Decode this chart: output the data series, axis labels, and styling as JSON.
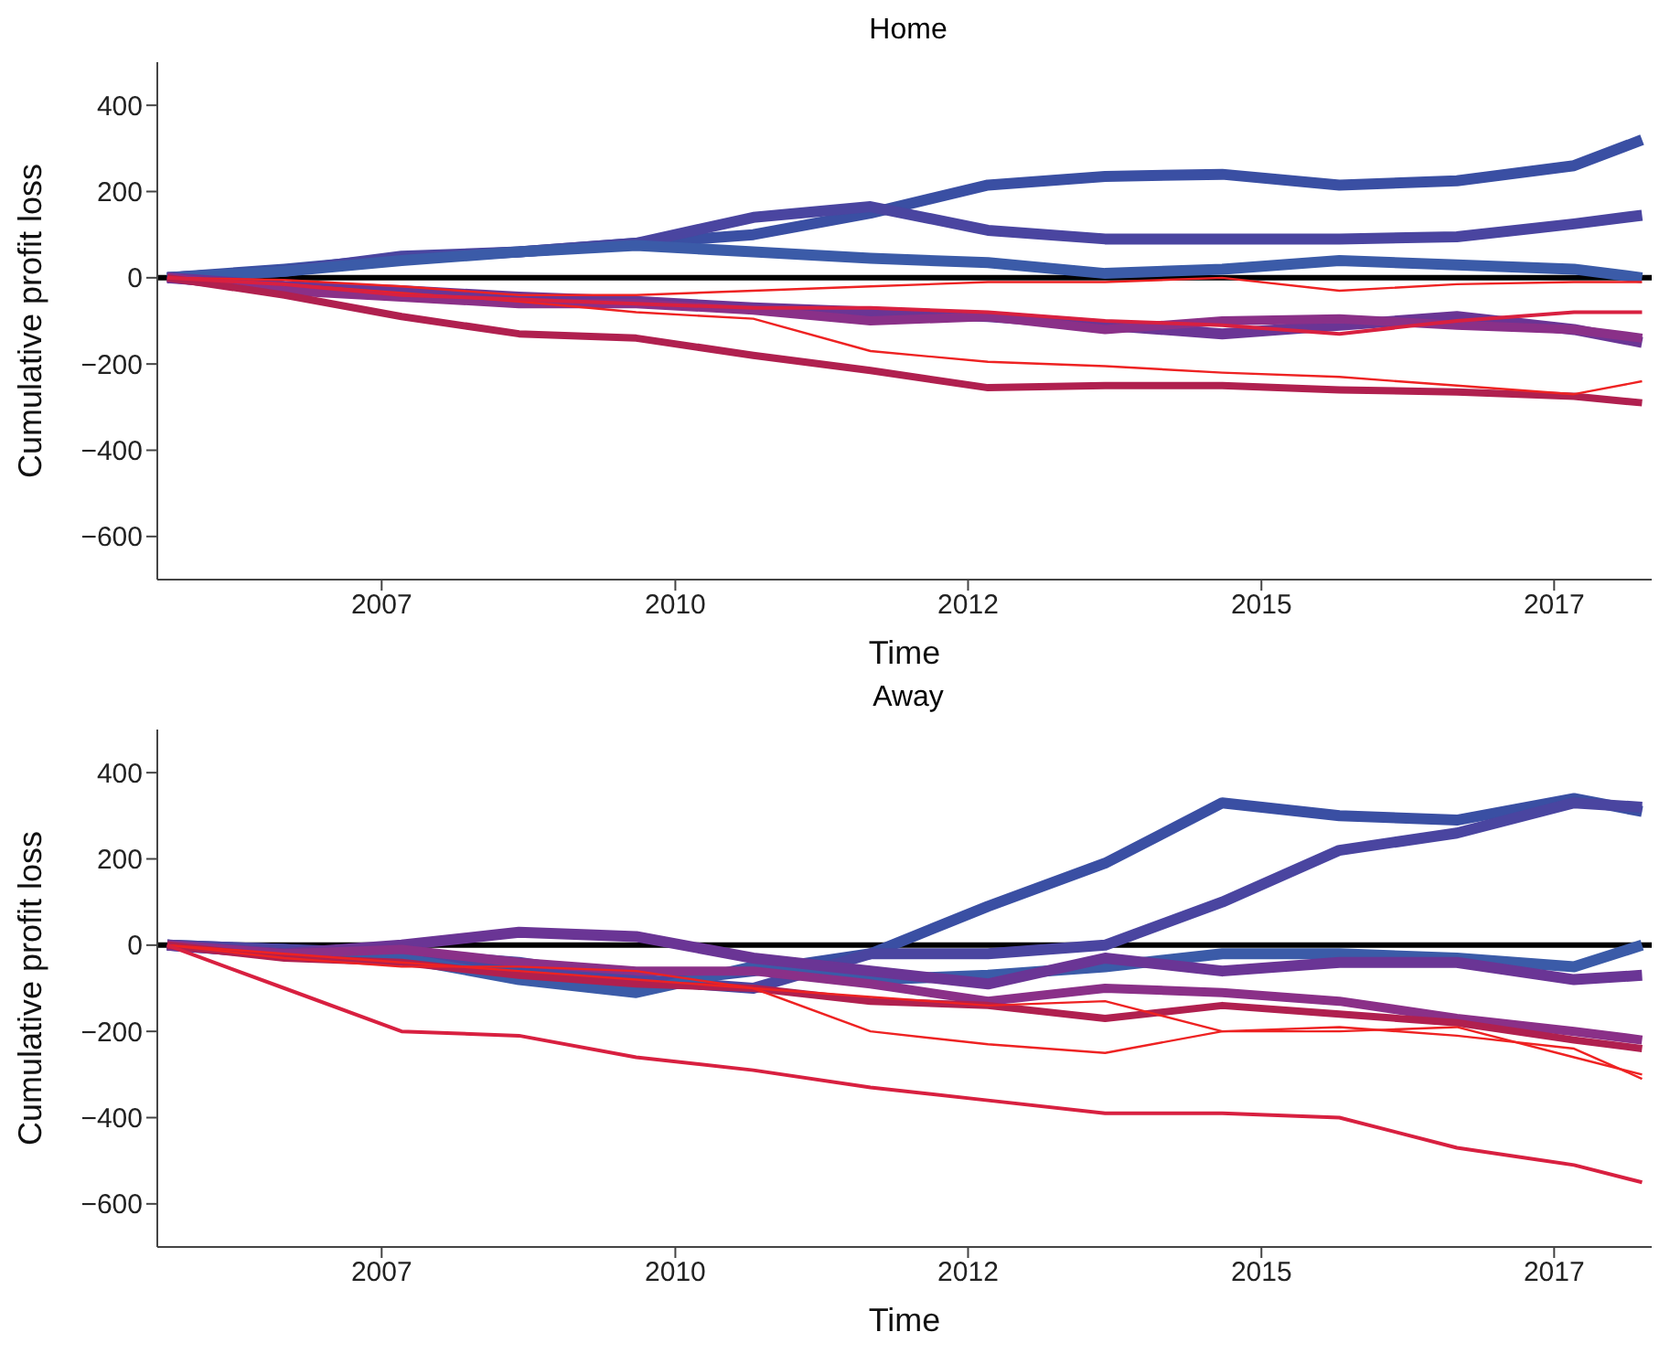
{
  "chart_data": [
    {
      "type": "line",
      "title": "Home",
      "xlabel": "Time",
      "ylabel": "Cumulative profit loss",
      "grid": false,
      "marker": "none",
      "line_style": "solid",
      "x": [
        "2005-09",
        "2006-09",
        "2007-09",
        "2008-09",
        "2009-09",
        "2010-09",
        "2011-09",
        "2012-09",
        "2013-09",
        "2014-09",
        "2015-09",
        "2016-09",
        "2017-09",
        "2018-04"
      ],
      "xlim": [
        "2005-08",
        "2018-05"
      ],
      "xticks": [
        {
          "value": "2007-07",
          "label": "2007"
        },
        {
          "value": "2010-01",
          "label": "2010"
        },
        {
          "value": "2012-07",
          "label": "2012"
        },
        {
          "value": "2015-01",
          "label": "2015"
        },
        {
          "value": "2017-07",
          "label": "2017"
        }
      ],
      "ylim": [
        -700,
        500
      ],
      "yticks": [
        -600,
        -400,
        -200,
        0,
        200,
        400
      ],
      "ref_lines": [
        {
          "axis": "y",
          "value": 0,
          "color": "#000000"
        }
      ],
      "series": [
        {
          "color": "#3a4fa3",
          "values": [
            0,
            20,
            45,
            60,
            80,
            100,
            150,
            215,
            235,
            240,
            215,
            225,
            260,
            320
          ]
        },
        {
          "color": "#4a45a0",
          "values": [
            0,
            15,
            50,
            60,
            80,
            140,
            165,
            110,
            90,
            90,
            90,
            95,
            125,
            145
          ]
        },
        {
          "color": "#3b5ba8",
          "values": [
            0,
            15,
            40,
            60,
            75,
            60,
            45,
            35,
            10,
            20,
            40,
            30,
            20,
            0
          ]
        },
        {
          "color": "#6a3595",
          "values": [
            0,
            -20,
            -30,
            -45,
            -55,
            -70,
            -80,
            -90,
            -110,
            -130,
            -110,
            -90,
            -120,
            -150
          ]
        },
        {
          "color": "#8a3088",
          "values": [
            0,
            -30,
            -45,
            -60,
            -60,
            -75,
            -100,
            -90,
            -120,
            -100,
            -95,
            -110,
            -120,
            -140
          ]
        },
        {
          "color": "#b0204f",
          "values": [
            0,
            -40,
            -90,
            -130,
            -140,
            -180,
            -215,
            -255,
            -250,
            -250,
            -260,
            -265,
            -275,
            -290
          ]
        },
        {
          "color": "#ee2222",
          "values": [
            0,
            -15,
            -35,
            -55,
            -80,
            -95,
            -170,
            -195,
            -205,
            -220,
            -230,
            -250,
            -270,
            -240
          ]
        },
        {
          "color": "#ee2222",
          "values": [
            0,
            -5,
            -20,
            -40,
            -40,
            -30,
            -20,
            -10,
            -10,
            0,
            -30,
            -15,
            -10,
            -10
          ]
        },
        {
          "color": "#d82040",
          "values": [
            0,
            -15,
            -40,
            -50,
            -60,
            -70,
            -70,
            -80,
            -100,
            -110,
            -130,
            -100,
            -80,
            -80
          ]
        }
      ]
    },
    {
      "type": "line",
      "title": "Away",
      "xlabel": "Time",
      "ylabel": "Cumulative profit loss",
      "grid": false,
      "marker": "none",
      "line_style": "solid",
      "x": [
        "2005-09",
        "2006-09",
        "2007-09",
        "2008-09",
        "2009-09",
        "2010-09",
        "2011-09",
        "2012-09",
        "2013-09",
        "2014-09",
        "2015-09",
        "2016-09",
        "2017-09",
        "2018-04"
      ],
      "xlim": [
        "2005-08",
        "2018-05"
      ],
      "xticks": [
        {
          "value": "2007-07",
          "label": "2007"
        },
        {
          "value": "2010-01",
          "label": "2010"
        },
        {
          "value": "2012-07",
          "label": "2012"
        },
        {
          "value": "2015-01",
          "label": "2015"
        },
        {
          "value": "2017-07",
          "label": "2017"
        }
      ],
      "ylim": [
        -700,
        500
      ],
      "yticks": [
        -600,
        -400,
        -200,
        0,
        200,
        400
      ],
      "ref_lines": [
        {
          "axis": "y",
          "value": 0,
          "color": "#000000"
        }
      ],
      "series": [
        {
          "color": "#3a4fa3",
          "values": [
            0,
            -10,
            -30,
            -50,
            -90,
            -60,
            -20,
            90,
            190,
            330,
            300,
            290,
            340,
            310
          ]
        },
        {
          "color": "#4a45a0",
          "values": [
            0,
            -10,
            -20,
            -40,
            -80,
            -100,
            -20,
            -20,
            0,
            100,
            220,
            260,
            330,
            320
          ]
        },
        {
          "color": "#3b5ba8",
          "values": [
            0,
            -20,
            -30,
            -80,
            -110,
            -50,
            -80,
            -70,
            -50,
            -20,
            -20,
            -30,
            -50,
            0
          ]
        },
        {
          "color": "#6a3595",
          "values": [
            0,
            -20,
            0,
            30,
            20,
            -30,
            -60,
            -90,
            -30,
            -60,
            -40,
            -40,
            -80,
            -70
          ]
        },
        {
          "color": "#8a3088",
          "values": [
            0,
            -20,
            -10,
            -40,
            -60,
            -60,
            -90,
            -130,
            -100,
            -110,
            -130,
            -170,
            -200,
            -220
          ]
        },
        {
          "color": "#b0204f",
          "values": [
            0,
            -30,
            -40,
            -70,
            -90,
            -100,
            -130,
            -140,
            -170,
            -140,
            -160,
            -180,
            -220,
            -240
          ]
        },
        {
          "color": "#ee2222",
          "values": [
            0,
            -20,
            -40,
            -60,
            -80,
            -100,
            -200,
            -230,
            -250,
            -200,
            -200,
            -190,
            -260,
            -300
          ]
        },
        {
          "color": "#ee2222",
          "values": [
            0,
            -30,
            -50,
            -50,
            -60,
            -100,
            -120,
            -140,
            -130,
            -200,
            -190,
            -210,
            -240,
            -310
          ]
        },
        {
          "color": "#d82040",
          "values": [
            0,
            -100,
            -200,
            -210,
            -260,
            -290,
            -330,
            -360,
            -390,
            -390,
            -400,
            -470,
            -510,
            -550
          ]
        }
      ]
    }
  ]
}
